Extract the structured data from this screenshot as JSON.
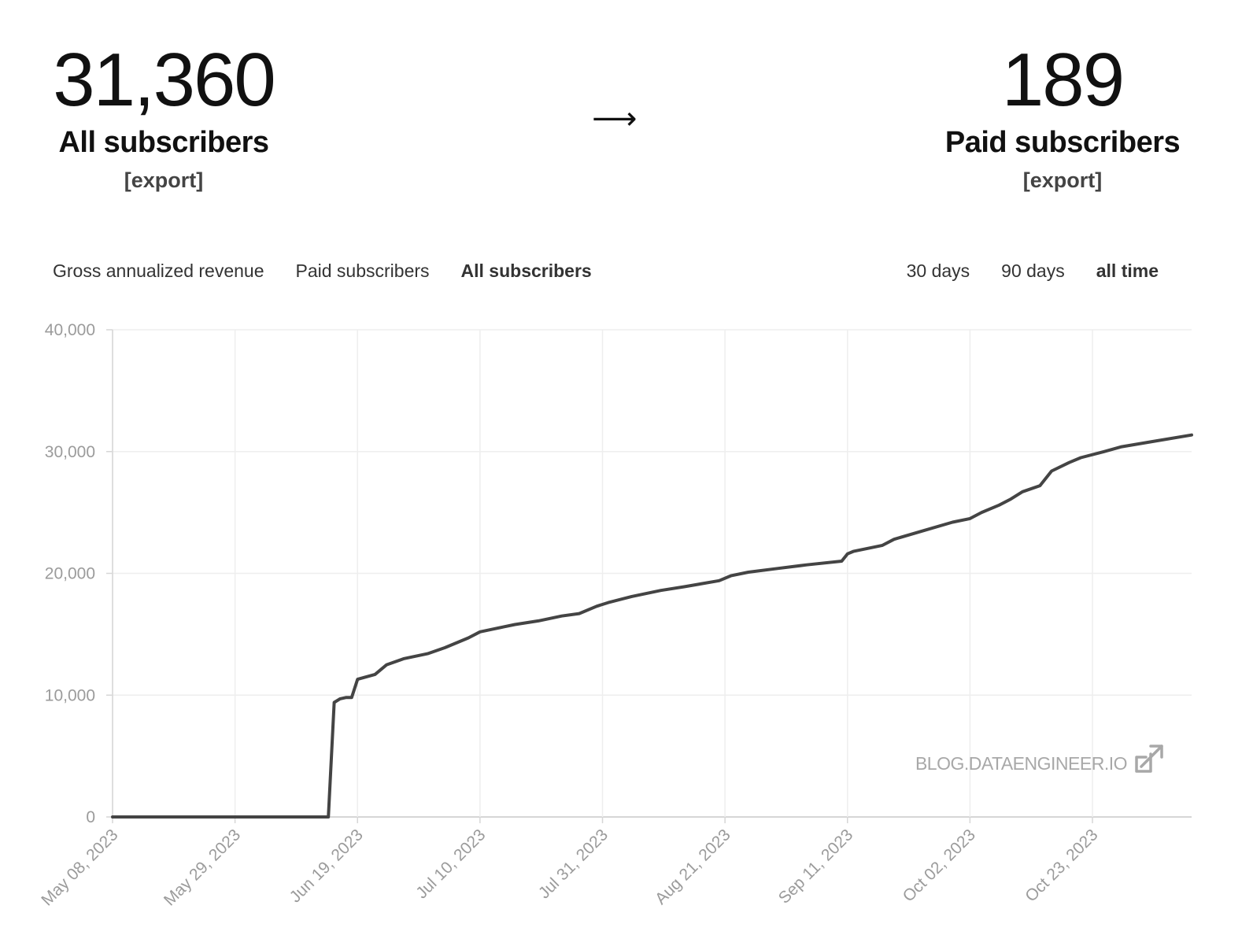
{
  "stats": {
    "all": {
      "value": "31,360",
      "label": "All subscribers",
      "export": "[export]"
    },
    "arrow": "⟶",
    "paid": {
      "value": "189",
      "label": "Paid subscribers",
      "export": "[export]"
    }
  },
  "metric_tabs": [
    {
      "label": "Gross annualized revenue",
      "active": false
    },
    {
      "label": "Paid subscribers",
      "active": false
    },
    {
      "label": "All subscribers",
      "active": true
    }
  ],
  "range_tabs": [
    {
      "label": "30 days",
      "active": false
    },
    {
      "label": "90 days",
      "active": false
    },
    {
      "label": "all time",
      "active": true
    }
  ],
  "watermark": "BLOG.DATAENGINEER.IO",
  "colors": {
    "line": "#444444",
    "grid": "#eeeeee",
    "axis": "#d6d6d6",
    "tick_text": "#9b9b9b"
  },
  "chart_data": {
    "type": "line",
    "title": "",
    "xlabel": "",
    "ylabel": "",
    "ylim": [
      0,
      40000
    ],
    "yticks": [
      0,
      10000,
      20000,
      30000,
      40000
    ],
    "ytick_labels": [
      "0",
      "10,000",
      "20,000",
      "30,000",
      "40,000"
    ],
    "xlim": [
      "2023-05-08",
      "2023-11-09"
    ],
    "xticks": [
      "2023-05-08",
      "2023-05-29",
      "2023-06-19",
      "2023-07-10",
      "2023-07-31",
      "2023-08-21",
      "2023-09-11",
      "2023-10-02",
      "2023-10-23"
    ],
    "xtick_labels": [
      "May 08, 2023",
      "May 29, 2023",
      "Jun 19, 2023",
      "Jul 10, 2023",
      "Jul 31, 2023",
      "Aug 21, 2023",
      "Sep 11, 2023",
      "Oct 02, 2023",
      "Oct 23, 2023"
    ],
    "grid": true,
    "x": [
      "2023-05-08",
      "2023-06-14",
      "2023-06-15",
      "2023-06-16",
      "2023-06-17",
      "2023-06-18",
      "2023-06-19",
      "2023-06-22",
      "2023-06-24",
      "2023-06-27",
      "2023-07-01",
      "2023-07-04",
      "2023-07-08",
      "2023-07-10",
      "2023-07-12",
      "2023-07-14",
      "2023-07-16",
      "2023-07-20",
      "2023-07-24",
      "2023-07-27",
      "2023-07-30",
      "2023-08-01",
      "2023-08-05",
      "2023-08-10",
      "2023-08-14",
      "2023-08-20",
      "2023-08-22",
      "2023-08-25",
      "2023-08-30",
      "2023-09-04",
      "2023-09-10",
      "2023-09-11",
      "2023-09-12",
      "2023-09-17",
      "2023-09-19",
      "2023-09-24",
      "2023-09-29",
      "2023-10-02",
      "2023-10-04",
      "2023-10-07",
      "2023-10-09",
      "2023-10-11",
      "2023-10-14",
      "2023-10-16",
      "2023-10-19",
      "2023-10-21",
      "2023-10-25",
      "2023-10-28",
      "2023-11-02",
      "2023-11-09"
    ],
    "series": [
      {
        "values": [
          0,
          0,
          9400,
          9700,
          9800,
          9800,
          11300,
          11700,
          12500,
          13000,
          13400,
          13900,
          14700,
          15200,
          15400,
          15600,
          15800,
          16100,
          16500,
          16700,
          17300,
          17600,
          18100,
          18600,
          18900,
          19400,
          19800,
          20100,
          20400,
          20700,
          21000,
          21600,
          21800,
          22300,
          22800,
          23500,
          24200,
          24500,
          25000,
          25600,
          26100,
          26700,
          27200,
          28400,
          29100,
          29500,
          30000,
          30400,
          30800,
          31360
        ]
      }
    ]
  }
}
